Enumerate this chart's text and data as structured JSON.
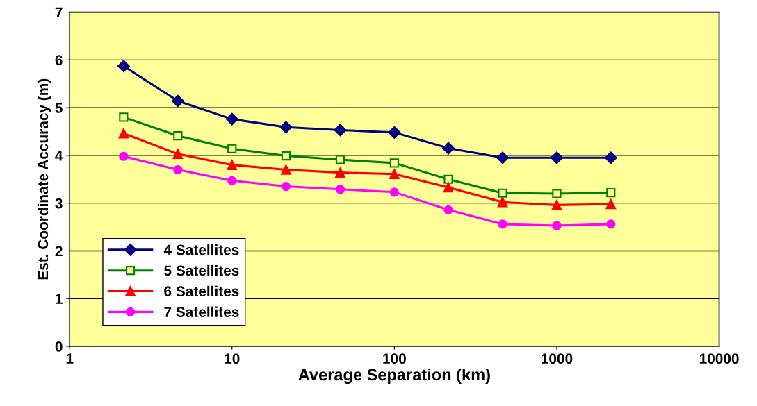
{
  "chart_data": {
    "type": "line",
    "xlabel": "Average Separation (km)",
    "ylabel": "Est. Coordinate Accuracy (m)",
    "log": "x",
    "x": [
      2.15,
      4.64,
      10,
      21.5,
      46.4,
      100,
      215,
      464,
      1000,
      2154
    ],
    "xlim": [
      1,
      10000
    ],
    "xticks": [
      1,
      10,
      100,
      1000,
      10000
    ],
    "ylim": [
      0,
      7
    ],
    "yticks": [
      0,
      1,
      2,
      3,
      4,
      5,
      6,
      7
    ],
    "grid": "y",
    "legend": "bottom left",
    "series": [
      {
        "name": "4 Satellites",
        "color": "#000080",
        "marker": "diamond",
        "values": [
          5.87,
          5.14,
          4.76,
          4.59,
          4.53,
          4.48,
          4.15,
          3.95,
          3.95,
          3.95
        ]
      },
      {
        "name": "5 Satellites",
        "color": "#008000",
        "marker": "square",
        "values": [
          4.8,
          4.41,
          4.14,
          3.99,
          3.91,
          3.84,
          3.5,
          3.21,
          3.2,
          3.22
        ]
      },
      {
        "name": "6 Satellites",
        "color": "#ff0000",
        "marker": "triangle",
        "values": [
          4.46,
          4.03,
          3.8,
          3.7,
          3.64,
          3.61,
          3.33,
          3.02,
          2.96,
          2.98
        ]
      },
      {
        "name": "7 Satellites",
        "color": "#ff00ff",
        "marker": "circle",
        "values": [
          3.98,
          3.7,
          3.47,
          3.35,
          3.29,
          3.23,
          2.86,
          2.56,
          2.53,
          2.56
        ]
      }
    ]
  }
}
